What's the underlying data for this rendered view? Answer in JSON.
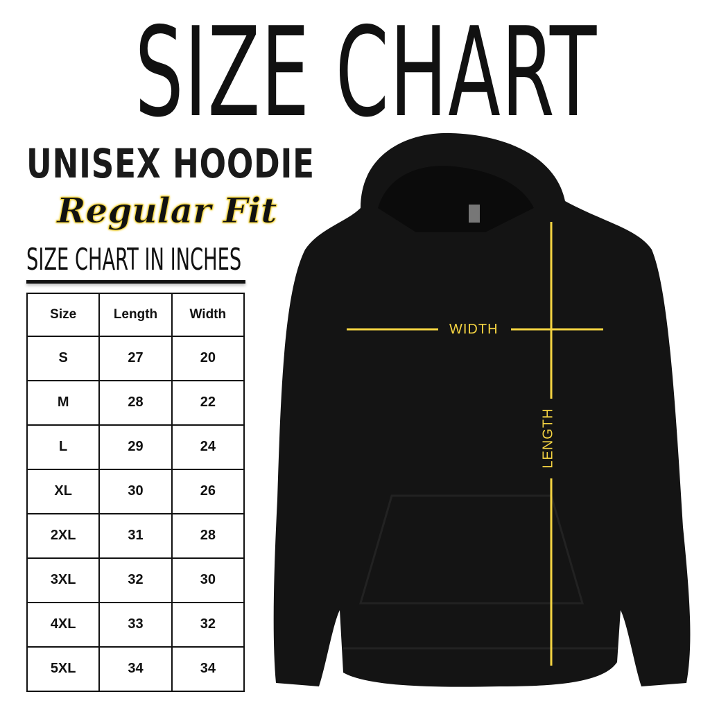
{
  "title": "SIZE CHART",
  "product": "UNISEX HOODIE",
  "fit": "Regular Fit",
  "units_heading": "SIZE CHART IN INCHES",
  "table": {
    "headers": [
      "Size",
      "Length",
      "Width"
    ],
    "rows": [
      [
        "S",
        "27",
        "20"
      ],
      [
        "M",
        "28",
        "22"
      ],
      [
        "L",
        "29",
        "24"
      ],
      [
        "XL",
        "30",
        "26"
      ],
      [
        "2XL",
        "31",
        "28"
      ],
      [
        "3XL",
        "32",
        "30"
      ],
      [
        "4XL",
        "33",
        "32"
      ],
      [
        "5XL",
        "34",
        "34"
      ]
    ]
  },
  "diagram": {
    "width_label": "WIDTH",
    "length_label": "LENGTH",
    "line_color": "#f5d442",
    "garment_color": "#141414"
  }
}
